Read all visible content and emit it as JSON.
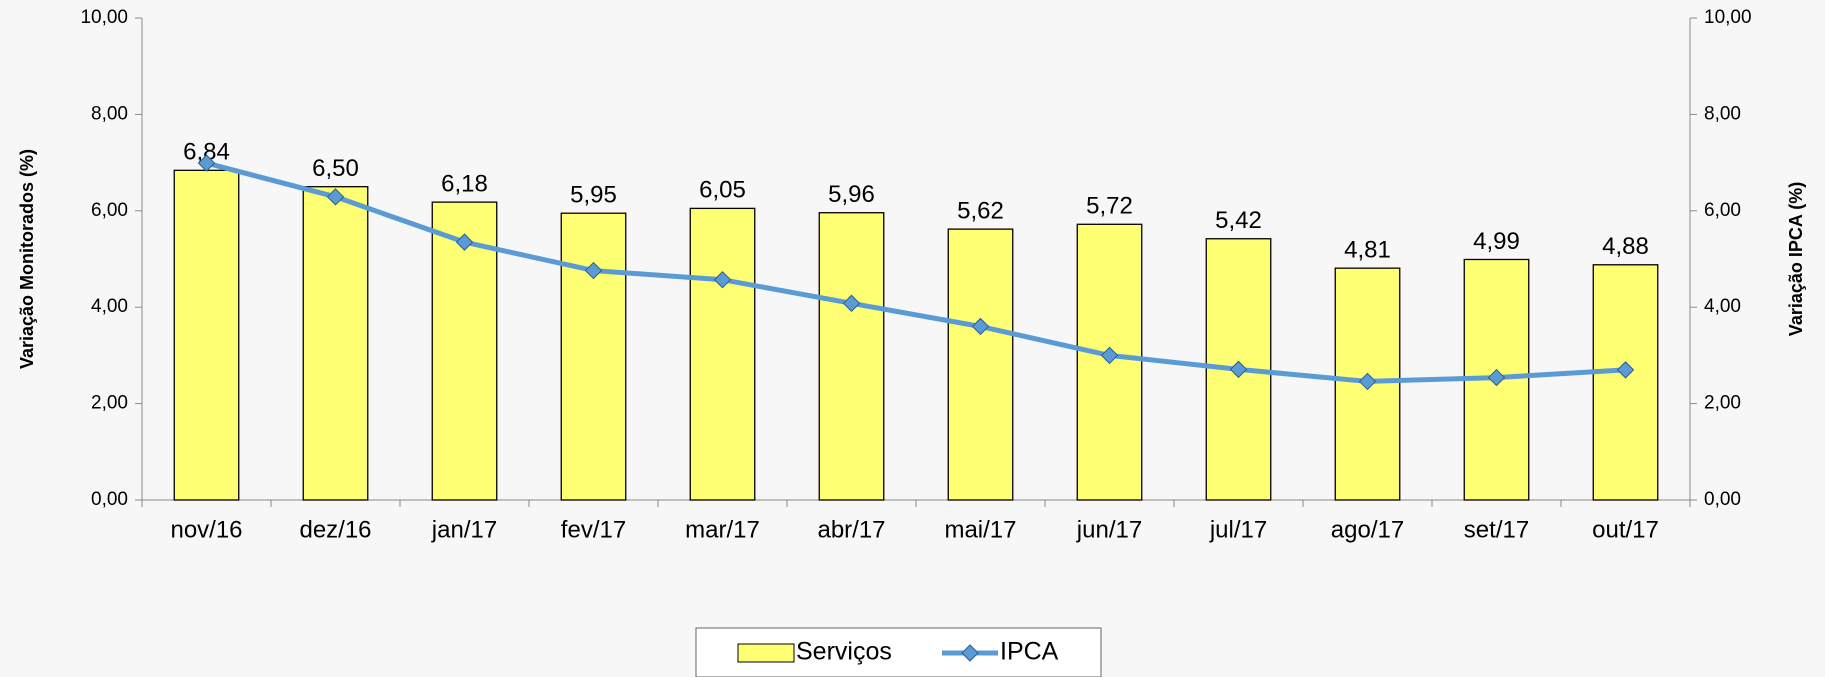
{
  "chart_data": {
    "type": "bar",
    "categories": [
      "nov/16",
      "dez/16",
      "jan/17",
      "fev/17",
      "mar/17",
      "abr/17",
      "mai/17",
      "jun/17",
      "jul/17",
      "ago/17",
      "set/17",
      "out/17"
    ],
    "series": [
      {
        "name": "Serviços",
        "type": "bar",
        "color": "#ffff73",
        "values": [
          6.84,
          6.5,
          6.18,
          5.95,
          6.05,
          5.96,
          5.62,
          5.72,
          5.42,
          4.81,
          4.99,
          4.88
        ],
        "value_labels": [
          "6,84",
          "6,50",
          "6,18",
          "5,95",
          "6,05",
          "5,96",
          "5,62",
          "5,72",
          "5,42",
          "4,81",
          "4,99",
          "4,88"
        ]
      },
      {
        "name": "IPCA",
        "type": "line",
        "axis": "y2",
        "color": "#5b9bd5",
        "values": [
          6.99,
          6.29,
          5.35,
          4.76,
          4.57,
          4.08,
          3.6,
          3.0,
          2.71,
          2.46,
          2.54,
          2.7
        ]
      }
    ],
    "ylabel": "Variação Monitorados (%)",
    "y2label": "Variação IPCA (%)",
    "ylim": [
      0,
      10
    ],
    "yticks": [
      {
        "value": 0,
        "label": "0,00"
      },
      {
        "value": 2,
        "label": "2,00"
      },
      {
        "value": 4,
        "label": "4,00"
      },
      {
        "value": 6,
        "label": "6,00"
      },
      {
        "value": 8,
        "label": "8,00"
      },
      {
        "value": 10,
        "label": "10,00"
      }
    ],
    "y2lim": [
      0,
      10
    ],
    "y2ticks": [
      {
        "value": 0,
        "label": "0,00"
      },
      {
        "value": 2,
        "label": "2,00"
      },
      {
        "value": 4,
        "label": "4,00"
      },
      {
        "value": 6,
        "label": "6,00"
      },
      {
        "value": 8,
        "label": "8,00"
      },
      {
        "value": 10,
        "label": "10,00"
      }
    ],
    "legend": "bottom"
  }
}
